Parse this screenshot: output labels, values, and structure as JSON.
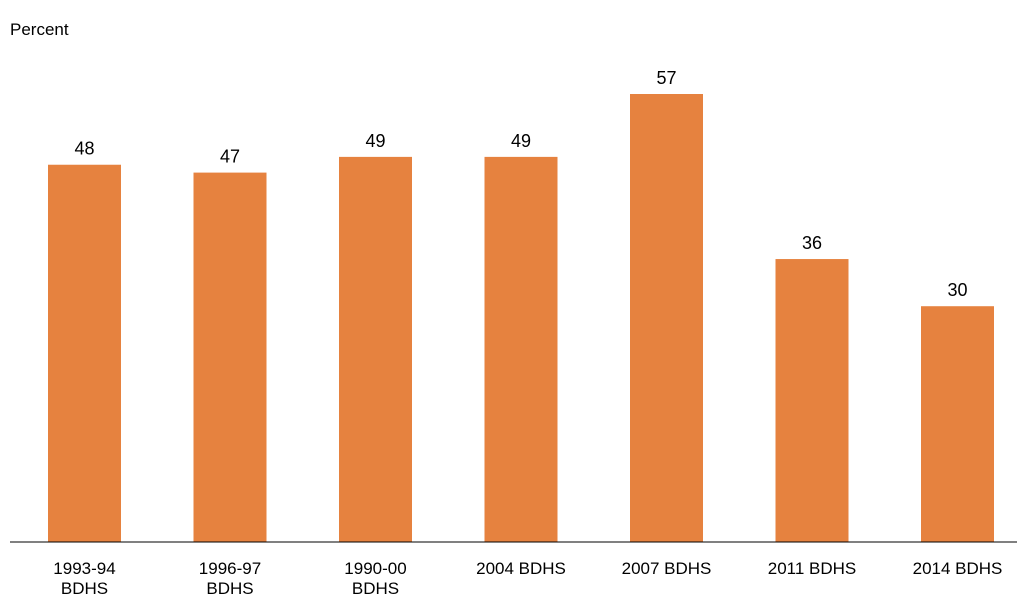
{
  "chart_data": {
    "type": "bar",
    "title": "",
    "xlabel": "",
    "ylabel": "Percent",
    "categories": [
      [
        "1993-94",
        "BDHS"
      ],
      [
        "1996-97",
        "BDHS"
      ],
      [
        "1990-00",
        "BDHS"
      ],
      [
        "2004 BDHS"
      ],
      [
        "2007 BDHS"
      ],
      [
        "2011 BDHS"
      ],
      [
        "2014 BDHS"
      ]
    ],
    "values": [
      48,
      47,
      49,
      49,
      57,
      36,
      30
    ],
    "ylim": [
      0,
      60
    ],
    "grid": false,
    "legend": "none",
    "colors": {
      "bar": "#E6823F",
      "axis": "#000000",
      "text": "#000000"
    }
  }
}
